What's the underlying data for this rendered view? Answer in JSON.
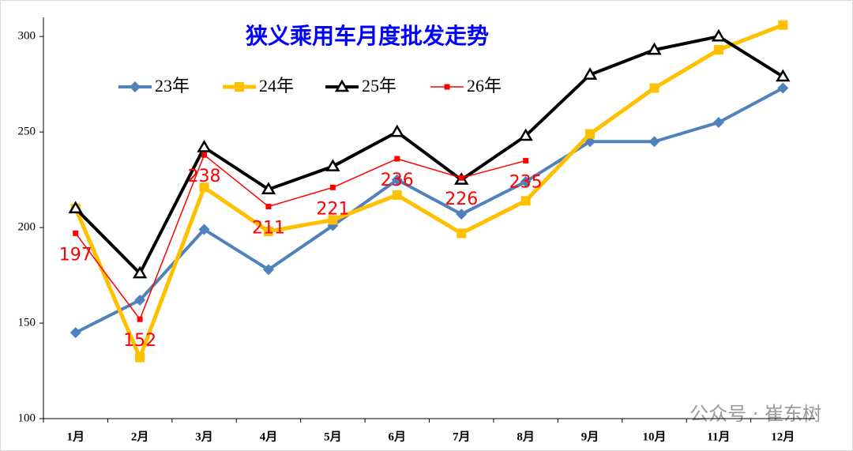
{
  "chart_data": {
    "type": "line",
    "title": "狭义乘用车月度批发走势",
    "categories": [
      "1月",
      "2月",
      "3月",
      "4月",
      "5月",
      "6月",
      "7月",
      "8月",
      "9月",
      "10月",
      "11月",
      "12月"
    ],
    "series": [
      {
        "name": "23年",
        "color": "#4f81bd",
        "marker": "diamond",
        "values": [
          145,
          162,
          199,
          178,
          201,
          225,
          207,
          224,
          245,
          245,
          255,
          273
        ]
      },
      {
        "name": "24年",
        "color": "#ffc000",
        "marker": "square",
        "values": [
          210,
          132,
          221,
          198,
          204,
          217,
          197,
          214,
          249,
          273,
          293,
          306
        ]
      },
      {
        "name": "25年",
        "color": "#000000",
        "marker": "triangle",
        "values": [
          210,
          176,
          242,
          220,
          232,
          250,
          225,
          248,
          280,
          293,
          300,
          279
        ]
      },
      {
        "name": "26年",
        "color": "#ff0000",
        "marker": "small-square",
        "data_labels": true,
        "values": [
          197,
          152,
          238,
          211,
          221,
          236,
          226,
          235,
          null,
          null,
          null,
          null
        ]
      }
    ],
    "ylim": [
      100,
      310
    ],
    "yticks": [
      100,
      150,
      200,
      250,
      300
    ],
    "grid": false,
    "legend": "top",
    "watermark": "公众号 · 崔东树"
  }
}
